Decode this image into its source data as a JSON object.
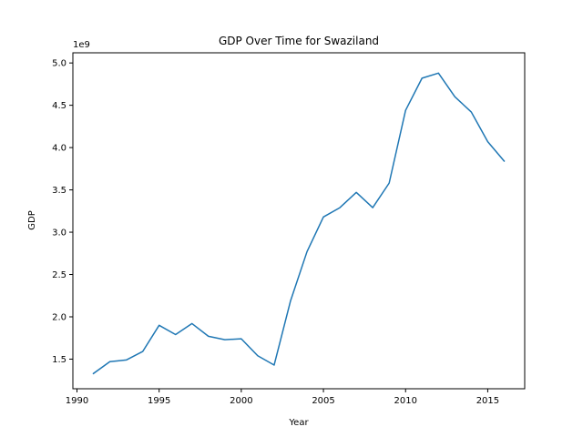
{
  "chart_data": {
    "type": "line",
    "title": "GDP Over Time for Swaziland",
    "xlabel": "Year",
    "ylabel": "GDP",
    "y_offset_label": "1e9",
    "xlim": [
      1989.75,
      2017.25
    ],
    "ylim": [
      1.15,
      5.12
    ],
    "x_ticks": [
      1990,
      1995,
      2000,
      2005,
      2010,
      2015
    ],
    "y_ticks": [
      1.5,
      2.0,
      2.5,
      3.0,
      3.5,
      4.0,
      4.5,
      5.0
    ],
    "grid": false,
    "line_color": "#1f77b4",
    "series": [
      {
        "x": [
          1991,
          1992,
          1993,
          1994,
          1995,
          1996,
          1997,
          1998,
          1999,
          2000,
          2001,
          2002,
          2003,
          2004,
          2005,
          2006,
          2007,
          2008,
          2009,
          2010,
          2011,
          2012,
          2013,
          2014,
          2015,
          2016
        ],
        "y": [
          1.33,
          1.47,
          1.49,
          1.59,
          1.9,
          1.79,
          1.92,
          1.77,
          1.73,
          1.74,
          1.54,
          1.43,
          2.19,
          2.77,
          3.18,
          3.29,
          3.47,
          3.29,
          3.58,
          4.44,
          4.82,
          4.88,
          4.6,
          4.42,
          4.07,
          3.84
        ]
      }
    ]
  }
}
